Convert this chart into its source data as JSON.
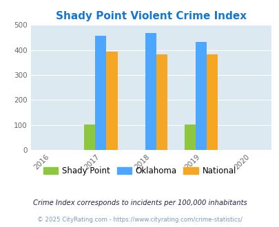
{
  "title": "Shady Point Violent Crime Index",
  "title_color": "#1777cc",
  "years": [
    2016,
    2017,
    2018,
    2019,
    2020
  ],
  "bar_years": [
    2017,
    2018,
    2019
  ],
  "shady_point": [
    101,
    0,
    101
  ],
  "oklahoma": [
    458,
    467,
    432
  ],
  "national": [
    394,
    382,
    381
  ],
  "bar_width": 0.22,
  "colors": {
    "shady_point": "#8dc63f",
    "oklahoma": "#4da6ff",
    "national": "#f5a623"
  },
  "ylim": [
    0,
    500
  ],
  "yticks": [
    0,
    100,
    200,
    300,
    400,
    500
  ],
  "plot_bg": "#dce9f0",
  "grid_color": "#ffffff",
  "footer_text": "Crime Index corresponds to incidents per 100,000 inhabitants",
  "copyright_text": "© 2025 CityRating.com - https://www.cityrating.com/crime-statistics/",
  "legend_labels": [
    "Shady Point",
    "Oklahoma",
    "National"
  ]
}
